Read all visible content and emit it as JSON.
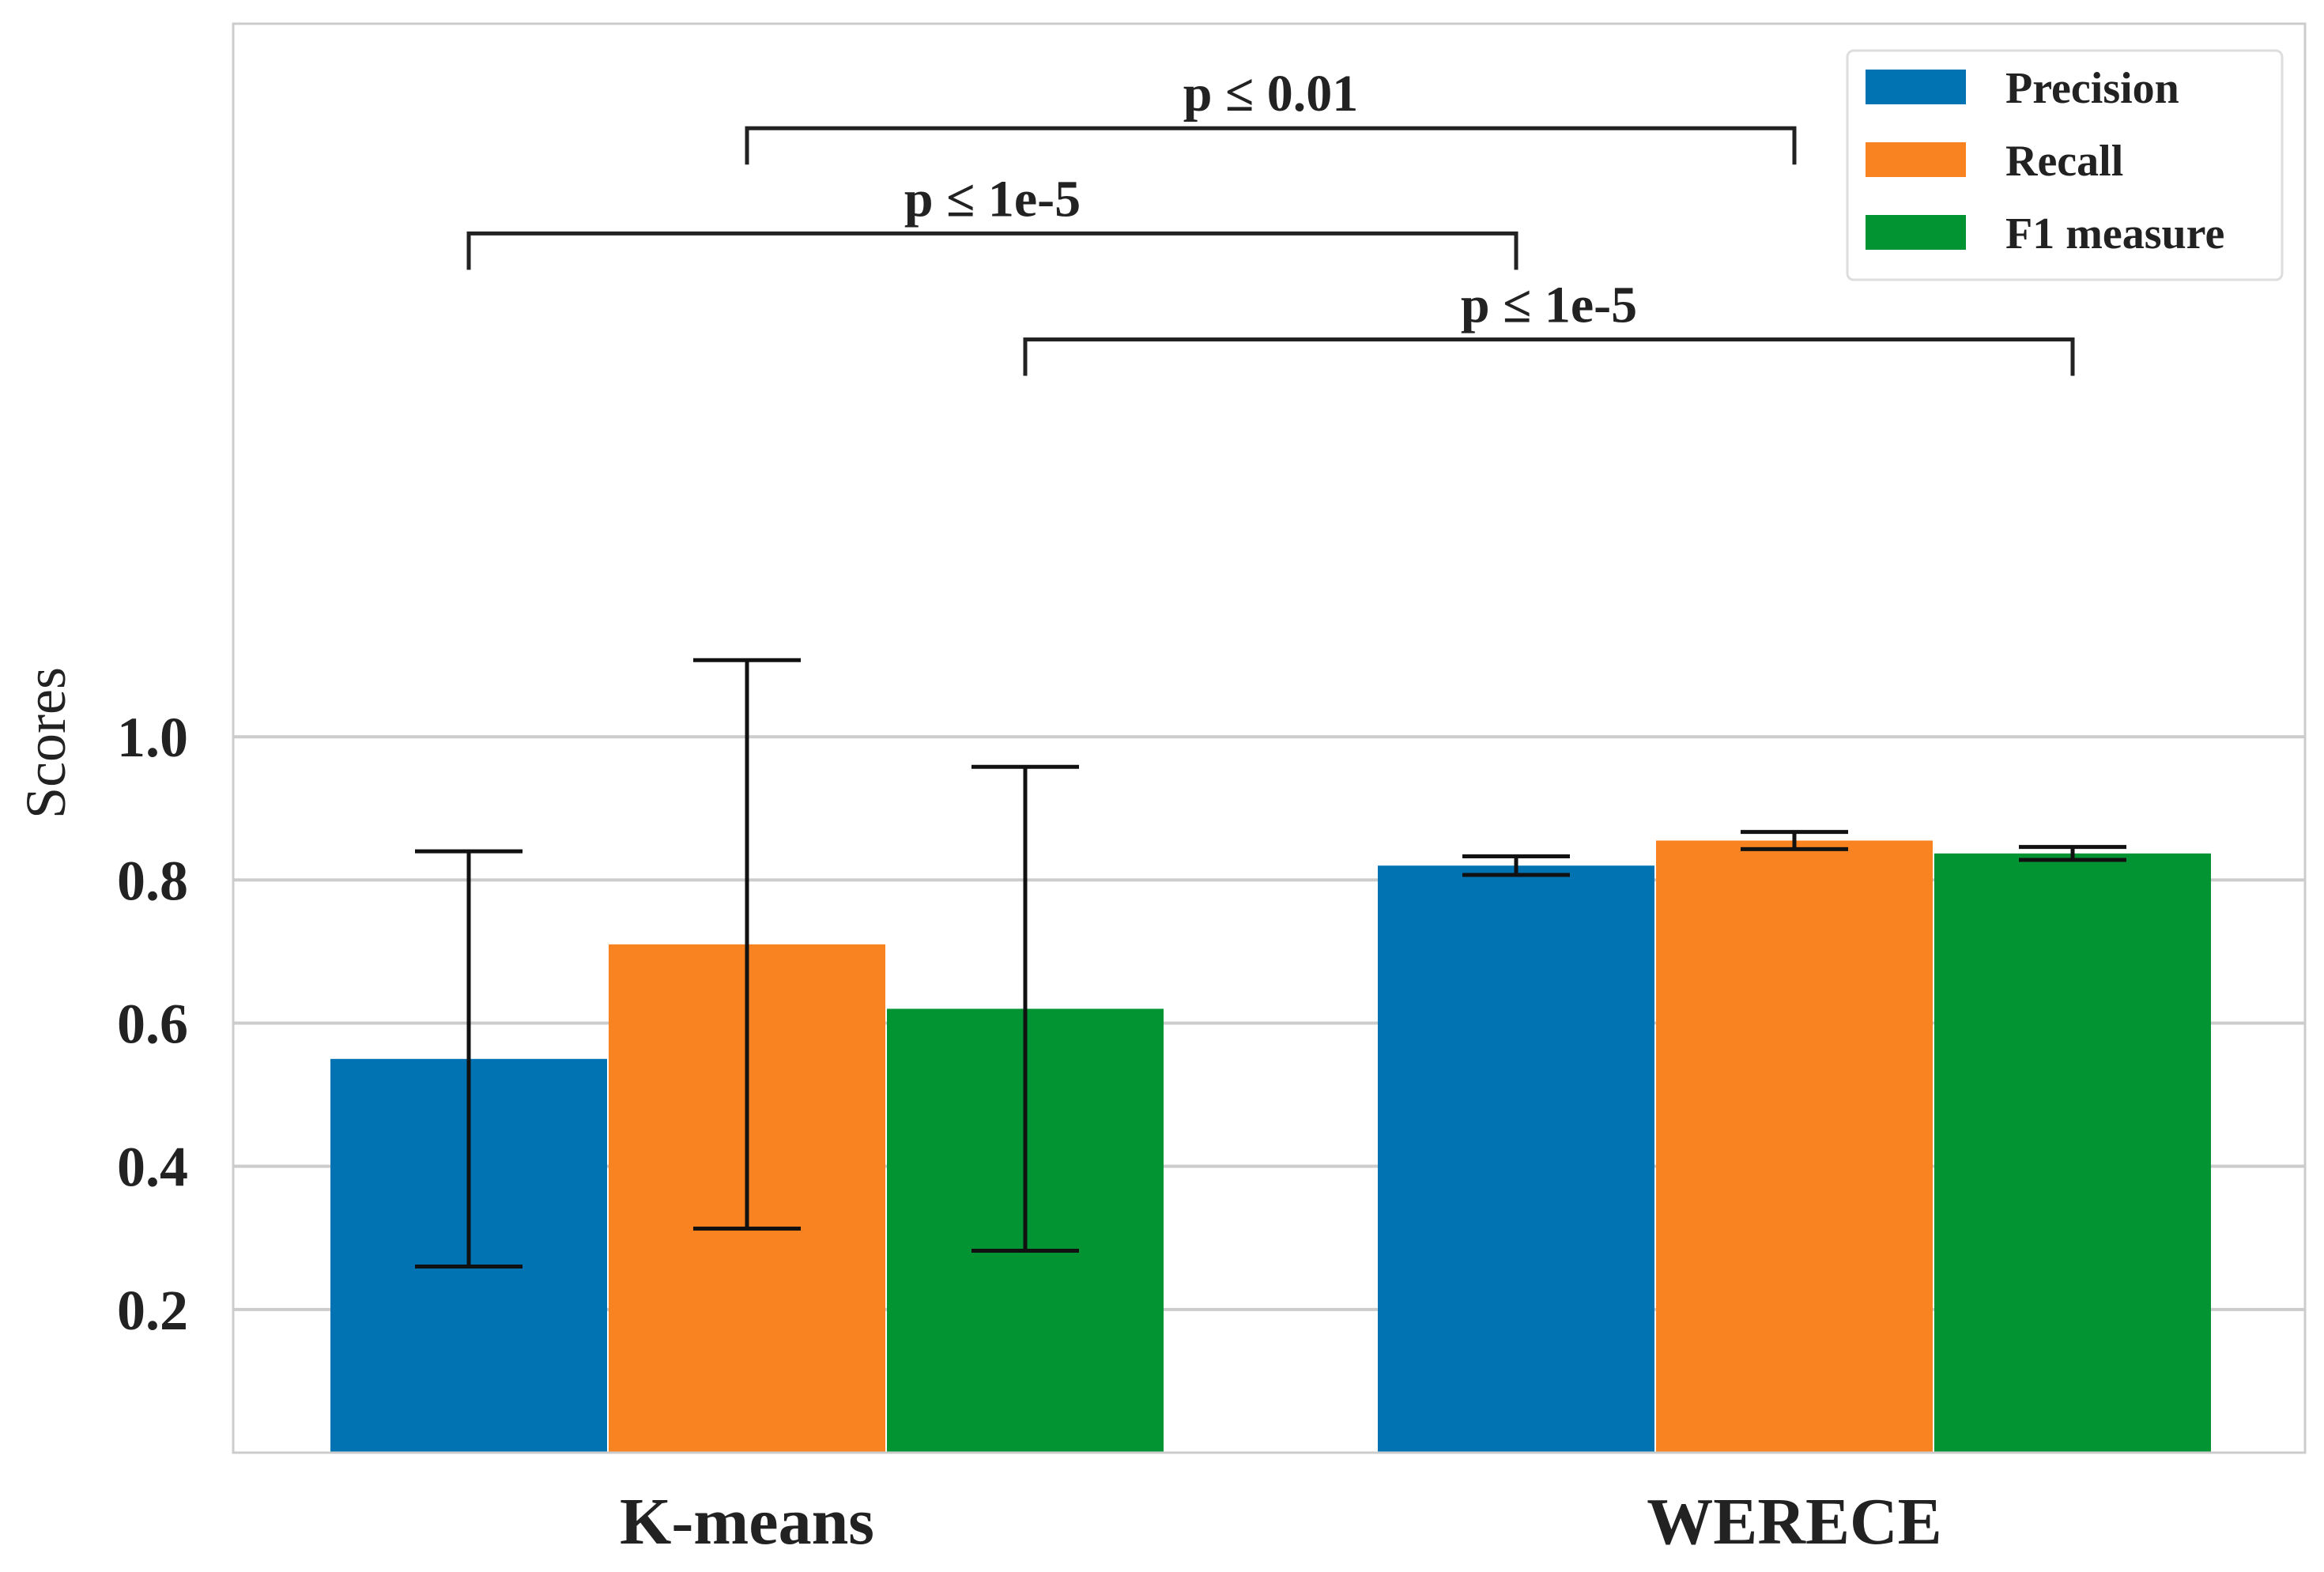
{
  "chart_data": {
    "type": "bar",
    "title": "",
    "xlabel": "",
    "ylabel": "Scores",
    "ylim": [
      0.0,
      1.996
    ],
    "yticks": [
      0.2,
      0.4,
      0.6,
      0.8,
      1.0
    ],
    "ytick_labels": [
      "0.2",
      "0.4",
      "0.6",
      "0.8",
      "1.0"
    ],
    "categories": [
      "K-means",
      "WERECE"
    ],
    "series": [
      {
        "name": "Precision",
        "color": "#0173b2",
        "values": [
          0.55,
          0.82
        ],
        "errors": [
          0.29,
          0.013
        ]
      },
      {
        "name": "Recall",
        "color": "#f88320",
        "values": [
          0.71,
          0.855
        ],
        "errors": [
          0.397,
          0.012
        ]
      },
      {
        "name": "F1 measure",
        "color": "#029433",
        "values": [
          0.62,
          0.837
        ],
        "errors": [
          0.338,
          0.009
        ]
      }
    ],
    "annotations": [
      {
        "text": "p ≤ 0.01",
        "from": "K-means / Recall",
        "to": "WERECE / Recall",
        "level": 1.85
      },
      {
        "text": "p ≤ 1e-5",
        "from": "K-means / Precision",
        "to": "WERECE / Precision",
        "level": 1.703
      },
      {
        "text": "p ≤ 1e-5",
        "from": "K-means / F1 measure",
        "to": "WERECE / F1 measure",
        "level": 1.555
      }
    ],
    "legend": {
      "position": "top-right",
      "entries": [
        "Precision",
        "Recall",
        "F1 measure"
      ]
    },
    "grid": true
  }
}
